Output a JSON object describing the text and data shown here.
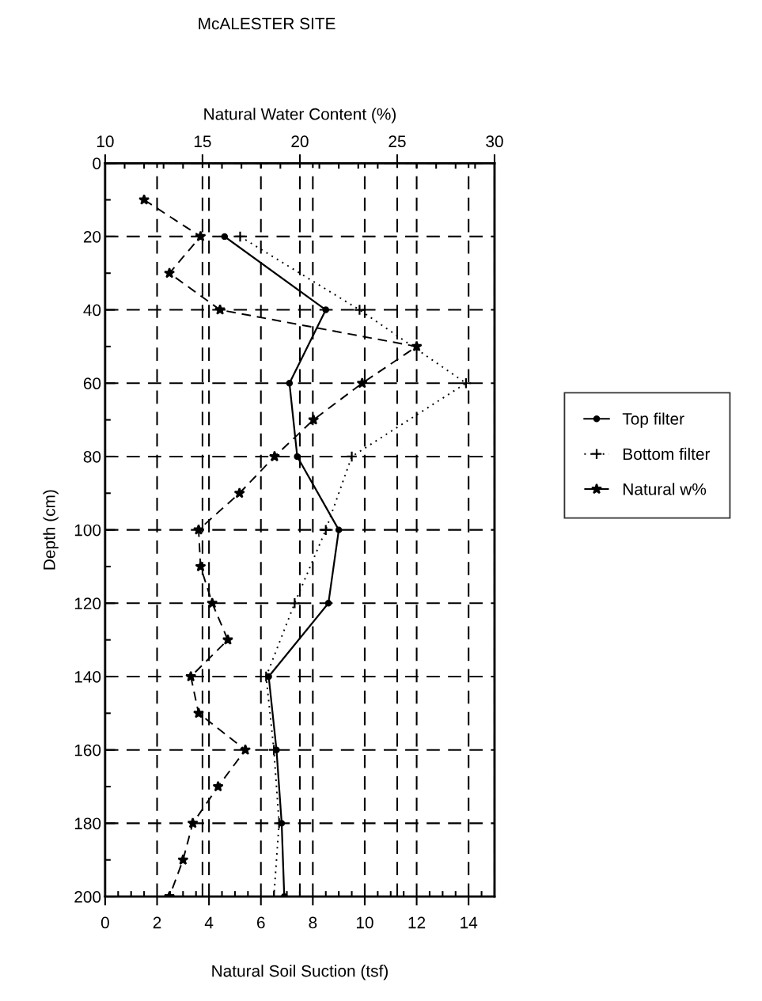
{
  "chart_data": {
    "type": "line",
    "title": "McALESTER SITE",
    "xlabel": "Natural Soil Suction (tsf)",
    "x2label": "Natural Water Content (%)",
    "ylabel": "Depth (cm)",
    "xlim": [
      0,
      15
    ],
    "xticks": [
      0,
      2,
      4,
      6,
      8,
      10,
      12,
      14
    ],
    "x2lim": [
      10,
      30
    ],
    "x2ticks": [
      10,
      15,
      20,
      25,
      30
    ],
    "ylim": [
      200,
      0
    ],
    "yticks": [
      0,
      20,
      40,
      60,
      80,
      100,
      120,
      140,
      160,
      180,
      200
    ],
    "grid": true,
    "legend": "right",
    "series": [
      {
        "name": "Top filter",
        "color": "#000000",
        "marker": "circle",
        "line_style": "solid",
        "x": [
          4.6,
          8.5,
          7.1,
          7.4,
          9.0,
          8.6,
          6.3,
          6.6,
          6.8,
          6.9
        ],
        "values": [
          20,
          40,
          60,
          80,
          100,
          120,
          140,
          160,
          180,
          200
        ]
      },
      {
        "name": "Bottom filter",
        "color": "#000000",
        "marker": "cross",
        "line_style": "dotted",
        "x": [
          5.2,
          9.8,
          13.9,
          9.5,
          8.5,
          7.3,
          6.2,
          6.5,
          6.7,
          6.5
        ],
        "values": [
          20,
          40,
          60,
          80,
          100,
          120,
          140,
          160,
          180,
          200
        ]
      },
      {
        "name": "Natural w%",
        "color": "#000000",
        "marker": "star",
        "line_style": "dashed",
        "axis": "x2",
        "x": [
          12.0,
          14.9,
          13.3,
          15.9,
          26.0,
          23.2,
          20.7,
          18.7,
          16.9,
          14.8,
          14.9,
          15.5,
          16.3,
          14.4,
          14.8,
          17.2,
          15.8,
          14.5,
          14.0,
          13.3
        ],
        "values": [
          10,
          20,
          30,
          40,
          50,
          60,
          70,
          80,
          90,
          100,
          110,
          120,
          130,
          140,
          150,
          160,
          170,
          180,
          190,
          200
        ]
      }
    ]
  }
}
